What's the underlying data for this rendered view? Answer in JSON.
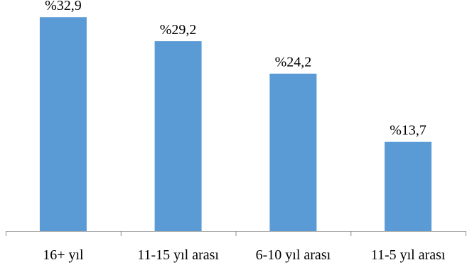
{
  "colors": {
    "bar": "#5b9bd5",
    "axis": "#8c8c8c",
    "text": "#000000"
  },
  "chart_data": {
    "type": "bar",
    "categories": [
      "16+ yıl",
      "11-15 yıl arası",
      "6-10 yıl arası",
      "11-5 yıl arası"
    ],
    "values": [
      32.9,
      29.2,
      24.2,
      13.7
    ],
    "data_labels": [
      "%32,9",
      "%29,2",
      "%24,2",
      "%13,7"
    ],
    "unit": "%",
    "ylim": [
      0,
      35
    ],
    "grid": false,
    "legend": "none",
    "title": "",
    "xlabel": "",
    "ylabel": ""
  }
}
